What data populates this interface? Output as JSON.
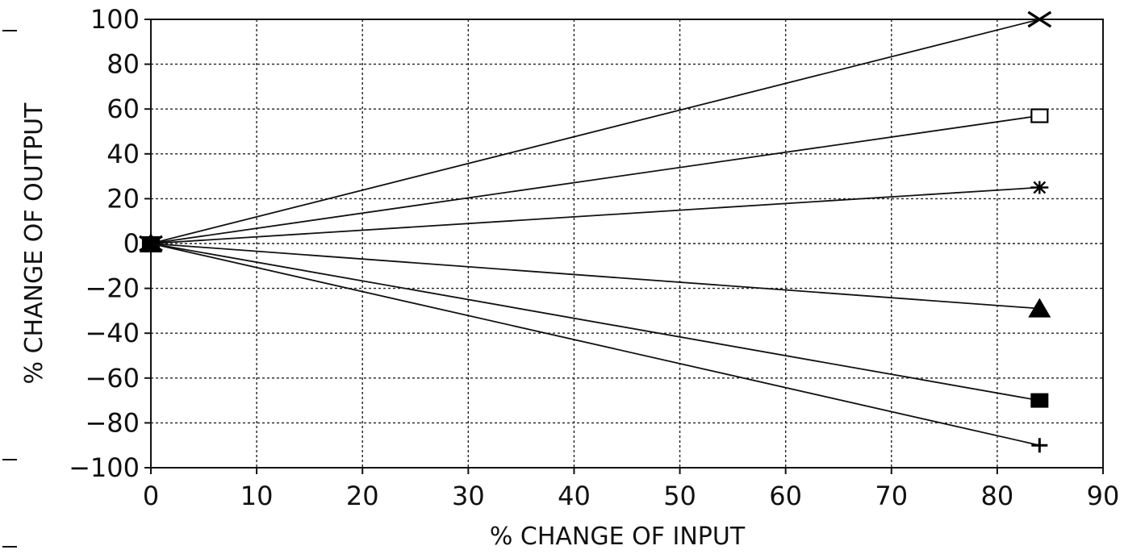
{
  "chart_data": {
    "type": "line",
    "xlabel": "% CHANGE OF INPUT",
    "ylabel": "% CHANGE OF OUTPUT",
    "xlim": [
      0,
      90
    ],
    "ylim": [
      -100,
      100
    ],
    "x_ticks": [
      "0",
      "10",
      "20",
      "30",
      "40",
      "50",
      "60",
      "70",
      "80",
      "90"
    ],
    "y_ticks": [
      "100",
      "80",
      "60",
      "40",
      "20",
      "0",
      "-20",
      "-40",
      "-60",
      "-80",
      "-100"
    ],
    "grid": true,
    "series": [
      {
        "marker": "x",
        "x": [
          0,
          84
        ],
        "y": [
          0,
          100
        ]
      },
      {
        "marker": "open-square",
        "x": [
          0,
          84
        ],
        "y": [
          0,
          57
        ]
      },
      {
        "marker": "asterisk",
        "x": [
          0,
          84
        ],
        "y": [
          0,
          25
        ]
      },
      {
        "marker": "filled-triangle",
        "x": [
          0,
          84
        ],
        "y": [
          0,
          -29
        ]
      },
      {
        "marker": "filled-square",
        "x": [
          0,
          84
        ],
        "y": [
          0,
          -70
        ]
      },
      {
        "marker": "plus",
        "x": [
          0,
          84
        ],
        "y": [
          0,
          -90
        ]
      }
    ]
  }
}
